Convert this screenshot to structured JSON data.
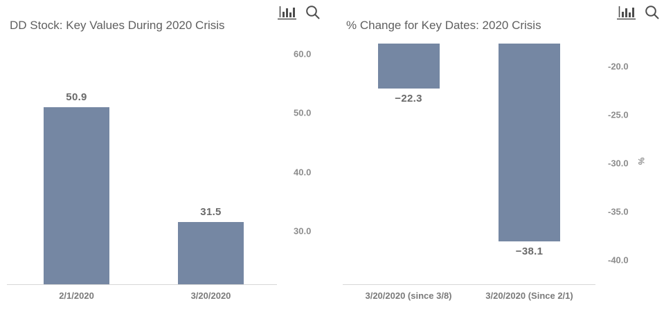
{
  "colors": {
    "bar": "#7587a3",
    "title_text": "#5f5f5f",
    "tick_text": "#8c8c8c",
    "value_text": "#696969",
    "category_text": "#7a7a7a",
    "axis_line": "#d6d6d6",
    "icon": "#4d4d4d",
    "background": "#ffffff"
  },
  "charts": [
    {
      "title": "DD Stock: Key Values During 2020 Crisis",
      "toolbar": {
        "icons": [
          "bar-chart-icon",
          "zoom-search-icon"
        ]
      },
      "chart_data": {
        "type": "bar",
        "categories": [
          "2/1/2020",
          "3/20/2020"
        ],
        "values": [
          50.9,
          31.5
        ],
        "value_labels": [
          "50.9",
          "31.5"
        ],
        "yticks": [
          60,
          50,
          40,
          30
        ],
        "ytick_labels": [
          "60.0",
          "50.0",
          "40.0",
          "30.0"
        ],
        "ylim": [
          21,
          62.3
        ],
        "ytick_side": "right",
        "xlabel": "",
        "ylabel": "",
        "grid": false,
        "legend": false,
        "bar_color": "#7587a3"
      }
    },
    {
      "title": "% Change for Key Dates: 2020 Crisis",
      "toolbar": {
        "icons": [
          "bar-chart-icon",
          "zoom-search-icon"
        ]
      },
      "chart_data": {
        "type": "bar",
        "categories": [
          "3/20/2020 (since 3/8)",
          "3/20/2020 (Since 2/1)"
        ],
        "values": [
          -22.3,
          -38.1
        ],
        "value_labels": [
          "−22.3",
          "−38.1"
        ],
        "yticks": [
          -20,
          -25,
          -30,
          -35,
          -40
        ],
        "ytick_labels": [
          "-20.0",
          "-25.0",
          "-30.0",
          "-35.0",
          "-40.0"
        ],
        "ylim": [
          -42.5,
          -17.64
        ],
        "ytick_side": "right",
        "xlabel": "",
        "ylabel": "%",
        "grid": false,
        "legend": false,
        "bar_color": "#7587a3"
      }
    }
  ]
}
